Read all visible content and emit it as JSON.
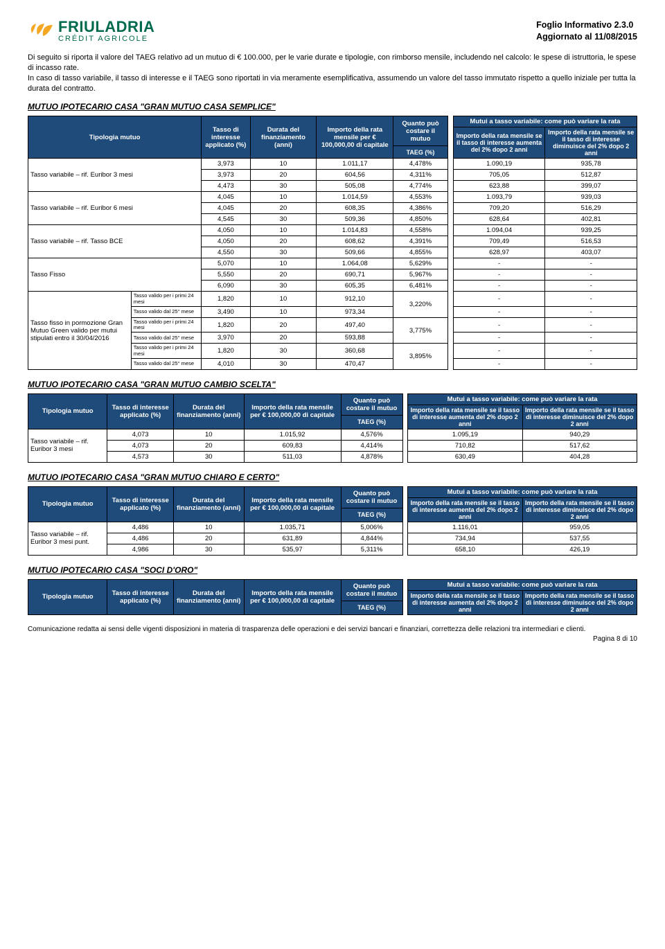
{
  "header": {
    "brand_main": "FRIULADRIA",
    "brand_sub": "CRÉDIT AGRICOLE",
    "doc_title": "Foglio Informativo 2.3.0",
    "doc_date": "Aggiornato al 11/08/2015"
  },
  "intro": "Di seguito si riporta il valore del TAEG relativo ad un mutuo di € 100.000, per le varie durate e tipologie, con rimborso mensile, includendo nel calcolo: le spese di istruttoria, le spese di incasso rate.\nIn caso di tasso variabile, il tasso di interesse e il TAEG sono riportati in via meramente esemplificativa, assumendo un valore del tasso immutato rispetto a quello iniziale per tutta la durata del contratto.",
  "colors": {
    "header_bg": "#1e4b7a",
    "header_fg": "#ffffff",
    "brand_green": "#006a4e",
    "leaf_orange": "#f5a623"
  },
  "labels": {
    "tipologia": "Tipologia mutuo",
    "tipologia_short": "Tipologia mutuo",
    "tasso": "Tasso di interesse applicato (%)",
    "tasso_short": "Tasso di interesse applicato (%)",
    "durata": "Durata del finanziamento (anni)",
    "importo": "Importo della rata mensile per € 100,000,00 di capitale",
    "quanto": "Quanto può costare il mutuo",
    "taeg": "TAEG (%)",
    "variabile_title": "Mutui a tasso variabile: come può variare la rata",
    "aumenta": "Importo della rata mensile se il tasso di interesse aumenta del 2% dopo 2 anni",
    "diminuisce": "Importo della rata mensile se il tasso di interesse diminuisce del 2% dopo 2 anni"
  },
  "section1": {
    "title": "MUTUO IPOTECARIO CASA \"GRAN MUTUO CASA SEMPLICE\"",
    "groups": [
      {
        "label": "Tasso variabile – rif. Euribor 3 mesi",
        "rowspan": 3,
        "rows": [
          {
            "t": "3,973",
            "d": "10",
            "i": "1.011,17",
            "taeg": "4,478%",
            "up": "1.090,19",
            "dn": "935,78"
          },
          {
            "t": "3,973",
            "d": "20",
            "i": "604,56",
            "taeg": "4,311%",
            "up": "705,05",
            "dn": "512,87"
          },
          {
            "t": "4,473",
            "d": "30",
            "i": "505,08",
            "taeg": "4,774%",
            "up": "623,88",
            "dn": "399,07"
          }
        ]
      },
      {
        "label": "Tasso variabile – rif. Euribor 6 mesi",
        "rowspan": 3,
        "rows": [
          {
            "t": "4,045",
            "d": "10",
            "i": "1.014,59",
            "taeg": "4,553%",
            "up": "1.093,79",
            "dn": "939,03"
          },
          {
            "t": "4,045",
            "d": "20",
            "i": "608,35",
            "taeg": "4,386%",
            "up": "709,20",
            "dn": "516,29"
          },
          {
            "t": "4,545",
            "d": "30",
            "i": "509,36",
            "taeg": "4,850%",
            "up": "628,64",
            "dn": "402,81"
          }
        ]
      },
      {
        "label": "Tasso variabile – rif. Tasso BCE",
        "rowspan": 3,
        "rows": [
          {
            "t": "4,050",
            "d": "10",
            "i": "1.014,83",
            "taeg": "4,558%",
            "up": "1.094,04",
            "dn": "939,25"
          },
          {
            "t": "4,050",
            "d": "20",
            "i": "608,62",
            "taeg": "4,391%",
            "up": "709,49",
            "dn": "516,53"
          },
          {
            "t": "4,550",
            "d": "30",
            "i": "509,66",
            "taeg": "4,855%",
            "up": "628,97",
            "dn": "403,07"
          }
        ]
      },
      {
        "label": "Tasso Fisso",
        "rowspan": 3,
        "rows": [
          {
            "t": "5,070",
            "d": "10",
            "i": "1.064,08",
            "taeg": "5,629%",
            "up": "-",
            "dn": "-"
          },
          {
            "t": "5,550",
            "d": "20",
            "i": "690,71",
            "taeg": "5,967%",
            "up": "-",
            "dn": "-"
          },
          {
            "t": "6,090",
            "d": "30",
            "i": "605,35",
            "taeg": "6,481%",
            "up": "-",
            "dn": "-"
          }
        ]
      }
    ],
    "green": {
      "mainlabel": "Tasso fisso in pormozione Gran Mutuo Green valido per mutui stipulati entro il 30/04/2016",
      "rows": [
        {
          "sub": "Tasso valido per i primi 24 mesi",
          "t": "1,820",
          "d": "10",
          "i": "912,10",
          "taeg": "3,220%",
          "taeg_span": 2,
          "up": "-",
          "dn": "-"
        },
        {
          "sub": "Tasso valido dal 25° mese",
          "t": "3,490",
          "d": "10",
          "i": "973,34",
          "up": "-",
          "dn": "-"
        },
        {
          "sub": "Tasso valido per i primi 24 mesi",
          "t": "1,820",
          "d": "20",
          "i": "497,40",
          "taeg": "3,775%",
          "taeg_span": 2,
          "up": "-",
          "dn": "-"
        },
        {
          "sub": "Tasso valido dal 25° mese",
          "t": "3,970",
          "d": "20",
          "i": "593,88",
          "up": "-",
          "dn": "-"
        },
        {
          "sub": "Tasso valido per i primi 24 mesi",
          "t": "1,820",
          "d": "30",
          "i": "360,68",
          "taeg": "3,895%",
          "taeg_span": 2,
          "up": "-",
          "dn": "-"
        },
        {
          "sub": "Tasso valido dal 25° mese",
          "t": "4,010",
          "d": "30",
          "i": "470,47",
          "up": "-",
          "dn": "-"
        }
      ]
    }
  },
  "section2": {
    "title": "MUTUO IPOTECARIO CASA \"GRAN MUTUO CAMBIO SCELTA\"",
    "group_label": "Tasso variabile – rif. Euribor 3 mesi",
    "rows": [
      {
        "t": "4,073",
        "d": "10",
        "i": "1.015,92",
        "taeg": "4,576%",
        "up": "1.095,19",
        "dn": "940,29"
      },
      {
        "t": "4,073",
        "d": "20",
        "i": "609,83",
        "taeg": "4,414%",
        "up": "710,82",
        "dn": "517,62"
      },
      {
        "t": "4,573",
        "d": "30",
        "i": "511,03",
        "taeg": "4,878%",
        "up": "630,49",
        "dn": "404,28"
      }
    ]
  },
  "section3": {
    "title": "MUTUO IPOTECARIO CASA \"GRAN MUTUO CHIARO E CERTO\"",
    "group_label": "Tasso variabile – rif. Euribor 3 mesi punt.",
    "rows": [
      {
        "t": "4,486",
        "d": "10",
        "i": "1.035,71",
        "taeg": "5,006%",
        "up": "1.116,01",
        "dn": "959,05"
      },
      {
        "t": "4,486",
        "d": "20",
        "i": "631,89",
        "taeg": "4,844%",
        "up": "734,94",
        "dn": "537,55"
      },
      {
        "t": "4,986",
        "d": "30",
        "i": "535,97",
        "taeg": "5,311%",
        "up": "658,10",
        "dn": "426,19"
      }
    ]
  },
  "section4": {
    "title": "MUTUO IPOTECARIO CASA \"SOCI D'ORO\""
  },
  "footer": "Comunicazione redatta ai sensi delle vigenti disposizioni in materia di trasparenza delle operazioni e dei servizi bancari e finanziari, correttezza delle relazioni tra intermediari e clienti.",
  "page": "Pagina 8 di 10"
}
